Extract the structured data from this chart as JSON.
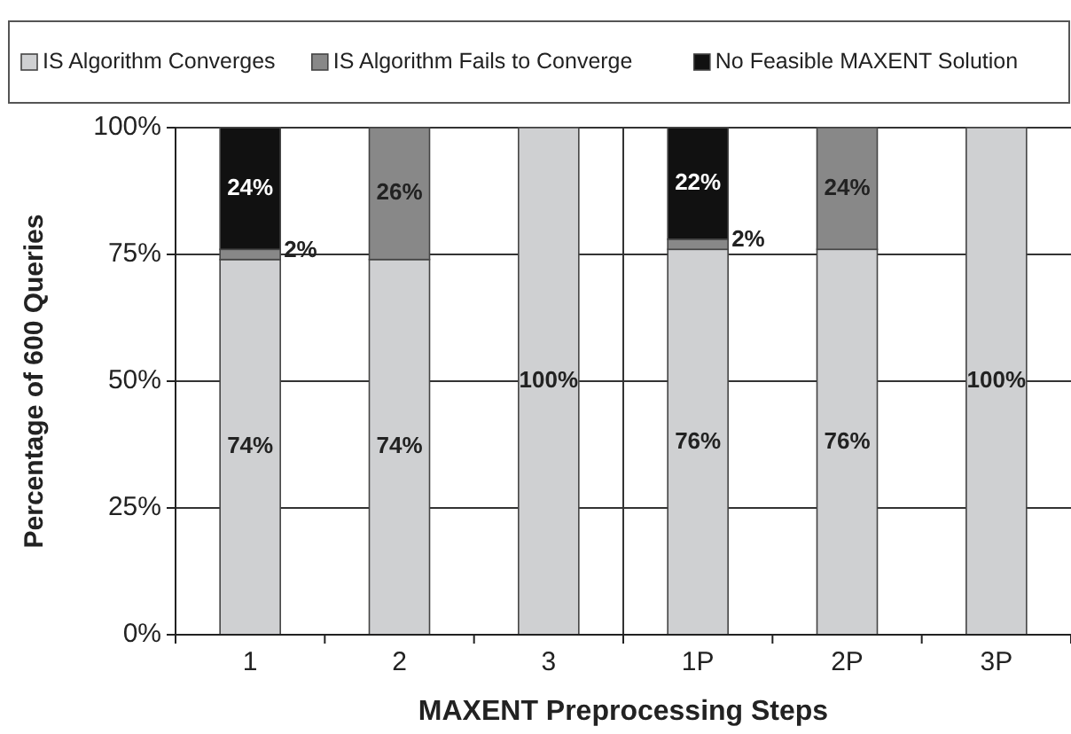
{
  "chart_data": {
    "type": "bar",
    "stacked": true,
    "xlabel": "MAXENT Preprocessing Steps",
    "ylabel": "Percentage of 600 Queries",
    "categories": [
      "1",
      "2",
      "3",
      "1P",
      "2P",
      "3P"
    ],
    "series": [
      {
        "name": "IS Algorithm Converges",
        "color": "#cfd0d2",
        "values": [
          74,
          74,
          100,
          76,
          76,
          100
        ],
        "value_labels": [
          "74%",
          "74%",
          "100%",
          "76%",
          "76%",
          "100%"
        ]
      },
      {
        "name": "IS Algorithm Fails to Converge",
        "color": "#888888",
        "values": [
          2,
          26,
          0,
          2,
          24,
          0
        ],
        "value_labels": [
          "2%",
          "26%",
          null,
          "2%",
          "24%",
          null
        ]
      },
      {
        "name": "No Feasible MAXENT Solution",
        "color": "#111111",
        "values": [
          24,
          0,
          0,
          22,
          0,
          0
        ],
        "value_labels": [
          "24%",
          null,
          null,
          "22%",
          null,
          null
        ]
      }
    ],
    "ylim": [
      0,
      100
    ],
    "yticks": [
      {
        "value": 0,
        "label": "0%"
      },
      {
        "value": 25,
        "label": "25%"
      },
      {
        "value": 50,
        "label": "50%"
      },
      {
        "value": 75,
        "label": "75%"
      },
      {
        "value": 100,
        "label": "100%"
      }
    ],
    "grid": "y",
    "legend": "top"
  }
}
